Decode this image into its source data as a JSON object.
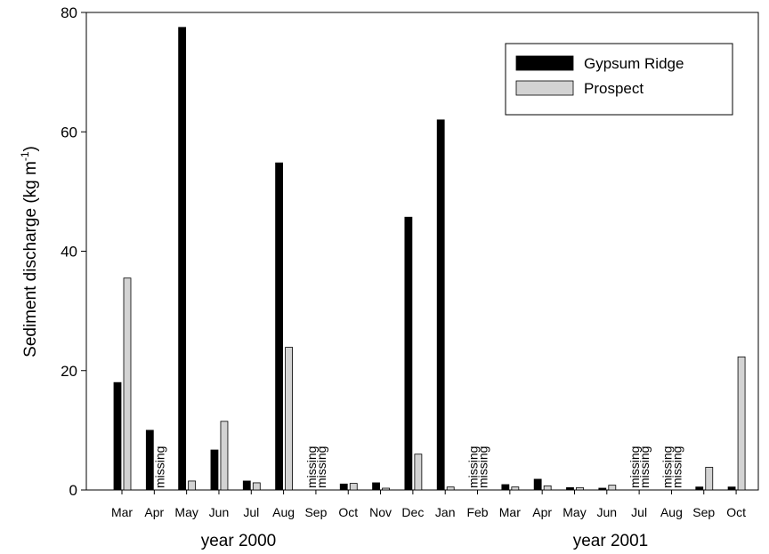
{
  "chart_data": {
    "type": "bar",
    "categories": [
      "Mar",
      "Apr",
      "May",
      "Jun",
      "Jul",
      "Aug",
      "Sep",
      "Oct",
      "Nov",
      "Dec",
      "Jan",
      "Feb",
      "Mar",
      "Apr",
      "May",
      "Jun",
      "Jul",
      "Aug",
      "Sep",
      "Oct"
    ],
    "series": [
      {
        "name": "Gypsum Ridge",
        "color": "#000000",
        "values": [
          18,
          10,
          77.5,
          6.7,
          1.5,
          54.8,
          null,
          1,
          1.2,
          45.7,
          62,
          null,
          0.9,
          1.8,
          0.4,
          0.3,
          null,
          null,
          0.5,
          0.5
        ],
        "value_labels": [
          null,
          null,
          null,
          null,
          null,
          null,
          "missing",
          null,
          null,
          null,
          null,
          "missing",
          null,
          null,
          null,
          null,
          "missing",
          "missing",
          null,
          null
        ]
      },
      {
        "name": "Prospect",
        "color": "#d3d3d3",
        "values": [
          35.5,
          null,
          1.5,
          11.5,
          1.2,
          23.9,
          null,
          1.1,
          0.3,
          6,
          0.5,
          null,
          0.5,
          0.7,
          0.4,
          0.8,
          null,
          null,
          3.8,
          22.3
        ],
        "value_labels": [
          null,
          "missing",
          null,
          null,
          null,
          null,
          "missing",
          null,
          null,
          null,
          null,
          "missing",
          null,
          null,
          null,
          null,
          "missing",
          "missing",
          null,
          null
        ]
      }
    ],
    "ylabel": [
      "Sediment discharge (kg m",
      "-1",
      ")"
    ],
    "group_labels": [
      "year 2000",
      "year 2001"
    ],
    "ylim": [
      0,
      80
    ],
    "yticks": [
      0,
      20,
      40,
      60,
      80
    ],
    "legend": "upper right",
    "grid": false
  }
}
